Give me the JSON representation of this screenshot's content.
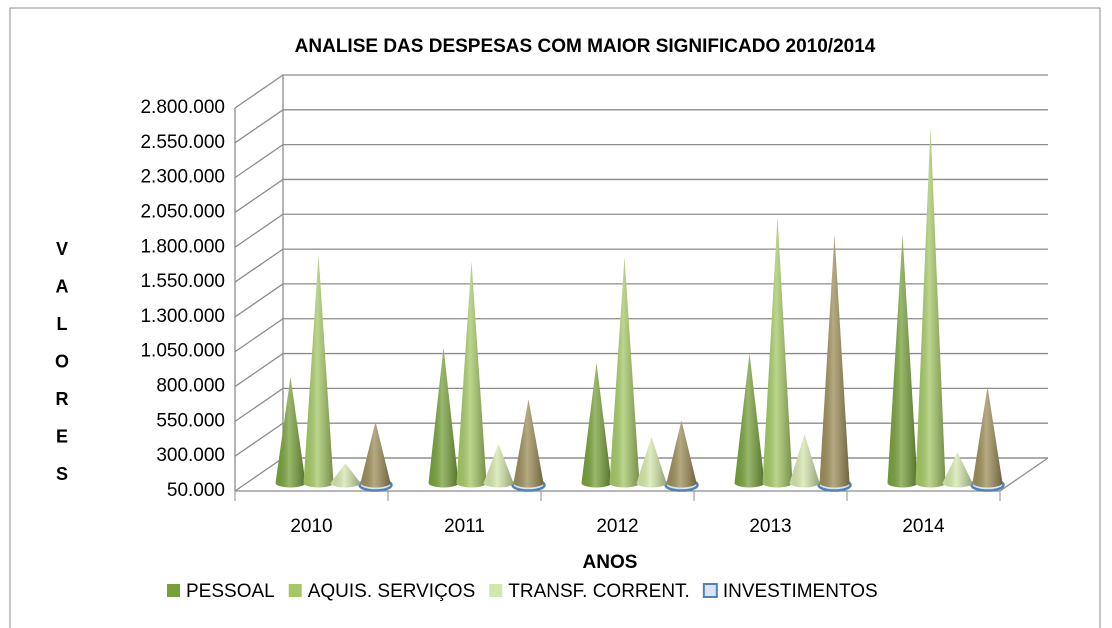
{
  "chart_data": {
    "type": "cone3d",
    "title": "ANALISE DAS DESPESAS COM MAIOR SIGNIFICADO 2010/2014",
    "yaxis_label": "VALORES",
    "xaxis_label": "ANOS",
    "categories": [
      "2010",
      "2011",
      "2012",
      "2013",
      "2014"
    ],
    "series": [
      {
        "name": "PESSOAL",
        "color": "#76a03a",
        "values": [
          810000,
          1020000,
          910000,
          980000,
          1830000
        ]
      },
      {
        "name": "AQUIS. SERVIÇOS",
        "color": "#a4c866",
        "values": [
          1690000,
          1640000,
          1670000,
          1960000,
          2600000
        ]
      },
      {
        "name": "TRANSF. CORRENT.",
        "color": "#d4e6ab",
        "values": [
          190000,
          330000,
          380000,
          400000,
          270000
        ]
      },
      {
        "color": "#9c8d57",
        "values": [
          490000,
          650000,
          500000,
          1830000,
          740000
        ]
      },
      {
        "name": "INVESTIMENTOS",
        "color": "#4f81bd",
        "values": [
          60000,
          60000,
          60000,
          60000,
          60000
        ]
      }
    ],
    "ylim": [
      50000,
      2800000
    ],
    "yticks": [
      {
        "value": 50000,
        "label": "50.000"
      },
      {
        "value": 300000,
        "label": "300.000"
      },
      {
        "value": 550000,
        "label": "550.000"
      },
      {
        "value": 800000,
        "label": "800.000"
      },
      {
        "value": 1050000,
        "label": "1.050.000"
      },
      {
        "value": 1300000,
        "label": "1.300.000"
      },
      {
        "value": 1550000,
        "label": "1.550.000"
      },
      {
        "value": 1800000,
        "label": "1.800.000"
      },
      {
        "value": 2050000,
        "label": "2.050.000"
      },
      {
        "value": 2300000,
        "label": "2.300.000"
      },
      {
        "value": 2550000,
        "label": "2.550.000"
      },
      {
        "value": 2800000,
        "label": "2.800.000"
      }
    ],
    "grid": true,
    "legend": "bottom"
  }
}
